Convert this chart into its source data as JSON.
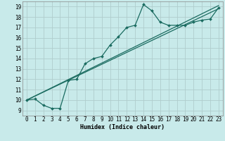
{
  "xlabel": "Humidex (Indice chaleur)",
  "bg_color": "#c8eaea",
  "grid_color": "#b0cdcd",
  "line_color": "#1a6b60",
  "xlim": [
    -0.5,
    23.5
  ],
  "ylim": [
    8.5,
    19.5
  ],
  "xticks": [
    0,
    1,
    2,
    3,
    4,
    5,
    6,
    7,
    8,
    9,
    10,
    11,
    12,
    13,
    14,
    15,
    16,
    17,
    18,
    19,
    20,
    21,
    22,
    23
  ],
  "yticks": [
    9,
    10,
    11,
    12,
    13,
    14,
    15,
    16,
    17,
    18,
    19
  ],
  "line1_x": [
    0,
    1,
    2,
    3,
    4,
    5,
    6,
    7,
    8,
    9,
    10,
    11,
    12,
    13,
    14,
    15,
    16,
    17,
    18,
    19,
    20,
    21,
    22,
    23
  ],
  "line1_y": [
    10.0,
    10.1,
    9.5,
    9.2,
    9.2,
    11.9,
    12.0,
    13.5,
    14.0,
    14.2,
    15.3,
    16.1,
    17.0,
    17.2,
    19.2,
    18.6,
    17.5,
    17.2,
    17.2,
    17.2,
    17.5,
    17.7,
    17.8,
    18.9
  ],
  "line2_x": [
    0,
    23
  ],
  "line2_y": [
    10.0,
    19.1
  ],
  "line3_x": [
    0,
    23
  ],
  "line3_y": [
    10.0,
    18.8
  ],
  "xlabel_fontsize": 6,
  "tick_fontsize": 5.5
}
